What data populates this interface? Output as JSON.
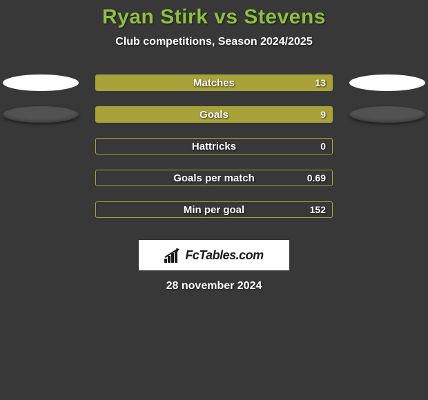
{
  "title": "Ryan Stirk vs Stevens",
  "subtitle": "Club competitions, Season 2024/2025",
  "date": "28 november 2024",
  "logo_text": "FcTables.com",
  "colors": {
    "background": "#383838",
    "title": "#8fbf3f",
    "bar_fill": "#a9a23a",
    "bar_border": "#a9a23a",
    "ellipse_white": "#ffffff",
    "ellipse_dark": "#525252",
    "text": "#ffffff"
  },
  "stats": [
    {
      "label": "Matches",
      "value": "13",
      "fill_pct": 100,
      "left_ellipse": "white",
      "right_ellipse": "white"
    },
    {
      "label": "Goals",
      "value": "9",
      "fill_pct": 100,
      "left_ellipse": "dark",
      "right_ellipse": "dark"
    },
    {
      "label": "Hattricks",
      "value": "0",
      "fill_pct": 0,
      "left_ellipse": null,
      "right_ellipse": null
    },
    {
      "label": "Goals per match",
      "value": "0.69",
      "fill_pct": 0,
      "left_ellipse": null,
      "right_ellipse": null
    },
    {
      "label": "Min per goal",
      "value": "152",
      "fill_pct": 0,
      "left_ellipse": null,
      "right_ellipse": null
    }
  ]
}
